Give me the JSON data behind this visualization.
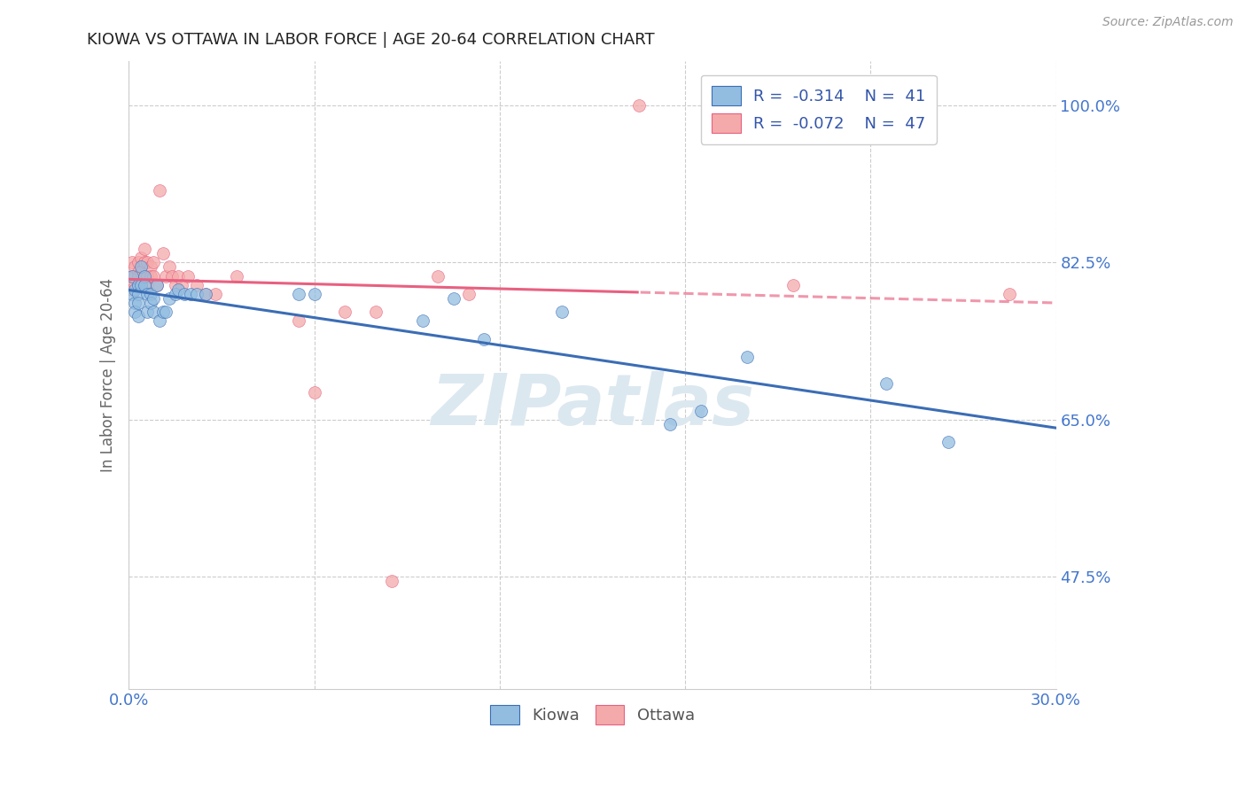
{
  "title": "KIOWA VS OTTAWA IN LABOR FORCE | AGE 20-64 CORRELATION CHART",
  "source": "Source: ZipAtlas.com",
  "legend_kiowa": "Kiowa",
  "legend_ottawa": "Ottawa",
  "legend_r_kiowa": "-0.314",
  "legend_n_kiowa": "41",
  "legend_r_ottawa": "-0.072",
  "legend_n_ottawa": "47",
  "kiowa_color": "#93BDE0",
  "ottawa_color": "#F4AAAA",
  "kiowa_line_color": "#3B6DB5",
  "ottawa_line_color": "#E86080",
  "watermark": "ZIPatlas",
  "xlim": [
    0.0,
    0.3
  ],
  "ylim": [
    0.35,
    1.05
  ],
  "background_color": "#ffffff",
  "grid_color": "#cccccc",
  "title_color": "#222222",
  "tick_label_color": "#4477CC",
  "kiowa_x": [
    0.001,
    0.001,
    0.002,
    0.002,
    0.002,
    0.003,
    0.003,
    0.003,
    0.003,
    0.004,
    0.004,
    0.005,
    0.005,
    0.006,
    0.006,
    0.007,
    0.007,
    0.008,
    0.008,
    0.009,
    0.01,
    0.011,
    0.012,
    0.013,
    0.015,
    0.016,
    0.018,
    0.02,
    0.022,
    0.025,
    0.055,
    0.06,
    0.095,
    0.105,
    0.115,
    0.14,
    0.175,
    0.185,
    0.2,
    0.245,
    0.265
  ],
  "kiowa_y": [
    0.79,
    0.81,
    0.795,
    0.78,
    0.77,
    0.8,
    0.79,
    0.78,
    0.765,
    0.82,
    0.8,
    0.81,
    0.8,
    0.79,
    0.77,
    0.79,
    0.78,
    0.785,
    0.77,
    0.8,
    0.76,
    0.77,
    0.77,
    0.785,
    0.79,
    0.795,
    0.79,
    0.79,
    0.79,
    0.79,
    0.79,
    0.79,
    0.76,
    0.785,
    0.74,
    0.77,
    0.645,
    0.66,
    0.72,
    0.69,
    0.625
  ],
  "ottawa_x": [
    0.001,
    0.001,
    0.001,
    0.002,
    0.002,
    0.002,
    0.003,
    0.003,
    0.003,
    0.003,
    0.004,
    0.004,
    0.004,
    0.005,
    0.005,
    0.005,
    0.006,
    0.006,
    0.006,
    0.007,
    0.007,
    0.008,
    0.008,
    0.009,
    0.01,
    0.011,
    0.012,
    0.013,
    0.014,
    0.015,
    0.016,
    0.017,
    0.019,
    0.022,
    0.025,
    0.028,
    0.035,
    0.055,
    0.06,
    0.07,
    0.08,
    0.085,
    0.1,
    0.11,
    0.165,
    0.215,
    0.285
  ],
  "ottawa_y": [
    0.825,
    0.81,
    0.795,
    0.82,
    0.81,
    0.8,
    0.825,
    0.815,
    0.81,
    0.8,
    0.83,
    0.815,
    0.8,
    0.84,
    0.825,
    0.81,
    0.825,
    0.81,
    0.8,
    0.82,
    0.81,
    0.825,
    0.81,
    0.8,
    0.905,
    0.835,
    0.81,
    0.82,
    0.81,
    0.8,
    0.81,
    0.8,
    0.81,
    0.8,
    0.79,
    0.79,
    0.81,
    0.76,
    0.68,
    0.77,
    0.77,
    0.47,
    0.81,
    0.79,
    1.0,
    0.8,
    0.79
  ]
}
